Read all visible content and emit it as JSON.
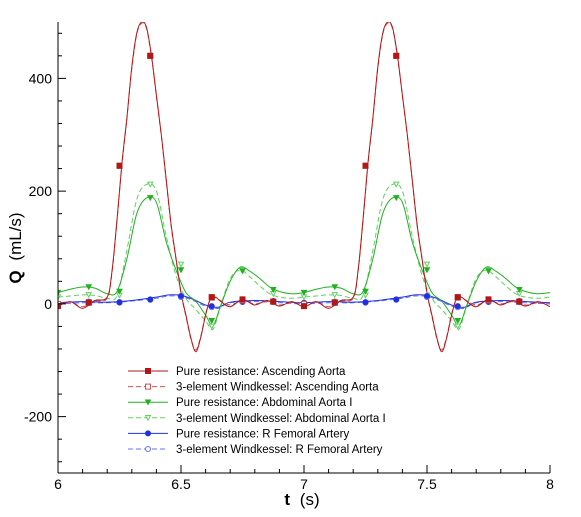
{
  "chart_data": {
    "type": "line",
    "xlabel": {
      "main": "t",
      "unit": "(s)"
    },
    "ylabel": {
      "main": "Q",
      "unit": "(mL/s)"
    },
    "xlim": [
      6,
      8
    ],
    "ylim": [
      -300,
      500
    ],
    "xticks": [
      6,
      6.5,
      7,
      7.5,
      8
    ],
    "xtick_labels": [
      "6",
      "6.5",
      "7",
      "7.5",
      "8"
    ],
    "yticks": [
      -200,
      0,
      200,
      400
    ],
    "ytick_labels": [
      "-200",
      "0",
      "200",
      "400"
    ],
    "legend_position": "bottom-center",
    "series": [
      {
        "name": "Pure resistance: Ascending Aorta",
        "color": "#b01818",
        "dash": "solid",
        "marker": "square",
        "marker_fill": "filled",
        "x": [
          6.0,
          6.05,
          6.1,
          6.15,
          6.2,
          6.22,
          6.24,
          6.26,
          6.28,
          6.3,
          6.32,
          6.34,
          6.36,
          6.38,
          6.4,
          6.42,
          6.44,
          6.46,
          6.48,
          6.5,
          6.52,
          6.54,
          6.56,
          6.58,
          6.6,
          6.62,
          6.64,
          6.66,
          6.7,
          6.75,
          6.8,
          6.85,
          6.9,
          6.95,
          7.0,
          7.05,
          7.1,
          7.15,
          7.2,
          7.22,
          7.24,
          7.26,
          7.28,
          7.3,
          7.32,
          7.34,
          7.36,
          7.38,
          7.4,
          7.42,
          7.44,
          7.46,
          7.48,
          7.5,
          7.52,
          7.54,
          7.56,
          7.58,
          7.6,
          7.62,
          7.64,
          7.66,
          7.7,
          7.75,
          7.8,
          7.85,
          7.9,
          7.95,
          8.0
        ],
        "y": [
          -4,
          4,
          -8,
          6,
          12,
          60,
          150,
          250,
          330,
          420,
          480,
          500,
          490,
          440,
          370,
          300,
          220,
          140,
          80,
          20,
          -20,
          -60,
          -85,
          -60,
          -20,
          10,
          12,
          5,
          -5,
          8,
          -2,
          6,
          -4,
          4,
          -5,
          4,
          -8,
          6,
          12,
          60,
          150,
          250,
          330,
          420,
          480,
          500,
          490,
          440,
          370,
          300,
          220,
          140,
          80,
          20,
          -20,
          -60,
          -85,
          -60,
          -20,
          10,
          12,
          5,
          -5,
          8,
          -2,
          6,
          -4,
          4,
          -5
        ],
        "marker_x": [
          6.0,
          6.125,
          6.25,
          6.375,
          6.625,
          6.75,
          6.875,
          7.0,
          7.125,
          7.25,
          7.375,
          7.625,
          7.75,
          7.875
        ],
        "marker_y": [
          -4,
          2,
          245,
          440,
          12,
          8,
          4,
          -4,
          2,
          245,
          440,
          12,
          8,
          4
        ]
      },
      {
        "name": "3-element Windkessel: Ascending Aorta",
        "color": "#d05050",
        "dash": "dashed",
        "marker": "square",
        "marker_fill": "open",
        "x": [
          6.0,
          6.05,
          6.1,
          6.15,
          6.2,
          6.22,
          6.24,
          6.26,
          6.28,
          6.3,
          6.32,
          6.34,
          6.36,
          6.38,
          6.4,
          6.42,
          6.44,
          6.46,
          6.48,
          6.5,
          6.52,
          6.54,
          6.56,
          6.58,
          6.6,
          6.62,
          6.64,
          6.66,
          6.7,
          6.75,
          6.8,
          6.85,
          6.9,
          6.95,
          7.0,
          7.05,
          7.1,
          7.15,
          7.2,
          7.22,
          7.24,
          7.26,
          7.28,
          7.3,
          7.32,
          7.34,
          7.36,
          7.38,
          7.4,
          7.42,
          7.44,
          7.46,
          7.48,
          7.5,
          7.52,
          7.54,
          7.56,
          7.58,
          7.6,
          7.62,
          7.64,
          7.66,
          7.7,
          7.75,
          7.8,
          7.85,
          7.9,
          7.95,
          8.0
        ],
        "y": [
          0,
          3,
          -5,
          5,
          10,
          58,
          148,
          248,
          328,
          418,
          478,
          498,
          488,
          438,
          368,
          298,
          218,
          138,
          78,
          18,
          -22,
          -62,
          -82,
          -58,
          -18,
          8,
          11,
          6,
          -2,
          6,
          0,
          4,
          -2,
          2,
          0,
          3,
          -5,
          5,
          10,
          58,
          148,
          248,
          328,
          418,
          478,
          498,
          488,
          438,
          368,
          298,
          218,
          138,
          78,
          18,
          -22,
          -62,
          -82,
          -58,
          -18,
          8,
          11,
          6,
          -2,
          6,
          0,
          4,
          -2,
          2,
          0
        ],
        "marker_x": [
          6.0,
          6.125,
          6.25,
          6.375,
          6.625,
          6.75,
          6.875,
          7.0,
          7.125,
          7.25,
          7.375,
          7.625,
          7.75,
          7.875
        ],
        "marker_y": [
          0,
          3,
          245,
          440,
          11,
          6,
          4,
          0,
          3,
          245,
          440,
          11,
          6,
          4
        ]
      },
      {
        "name": "Pure resistance: Abdominal Aorta I",
        "color": "#22b022",
        "dash": "solid",
        "marker": "triangle-down",
        "marker_fill": "filled",
        "x": [
          6.0,
          6.05,
          6.1,
          6.15,
          6.2,
          6.24,
          6.28,
          6.32,
          6.36,
          6.4,
          6.44,
          6.48,
          6.52,
          6.56,
          6.6,
          6.63,
          6.66,
          6.7,
          6.74,
          6.78,
          6.82,
          6.86,
          6.9,
          6.95,
          7.0,
          7.05,
          7.1,
          7.15,
          7.2,
          7.24,
          7.28,
          7.32,
          7.36,
          7.4,
          7.44,
          7.48,
          7.52,
          7.56,
          7.6,
          7.63,
          7.66,
          7.7,
          7.74,
          7.78,
          7.82,
          7.86,
          7.9,
          7.95,
          8.0
        ],
        "y": [
          20,
          26,
          30,
          28,
          18,
          22,
          80,
          160,
          188,
          180,
          110,
          60,
          20,
          5,
          -20,
          -38,
          -5,
          40,
          65,
          58,
          45,
          30,
          22,
          18,
          20,
          26,
          30,
          28,
          18,
          22,
          80,
          160,
          188,
          180,
          110,
          60,
          20,
          5,
          -20,
          -38,
          -5,
          40,
          65,
          58,
          45,
          30,
          22,
          18,
          20
        ],
        "marker_x": [
          6.0,
          6.125,
          6.25,
          6.375,
          6.5,
          6.625,
          6.75,
          6.875,
          7.0,
          7.125,
          7.25,
          7.375,
          7.5,
          7.625,
          7.75,
          7.875
        ],
        "marker_y": [
          20,
          30,
          22,
          188,
          60,
          -30,
          58,
          25,
          20,
          30,
          22,
          188,
          60,
          -30,
          58,
          25
        ]
      },
      {
        "name": "3-element Windkessel: Abdominal Aorta I",
        "color": "#60d060",
        "dash": "dashed",
        "marker": "triangle-down",
        "marker_fill": "open",
        "x": [
          6.0,
          6.05,
          6.1,
          6.15,
          6.2,
          6.24,
          6.28,
          6.32,
          6.36,
          6.4,
          6.44,
          6.48,
          6.52,
          6.56,
          6.6,
          6.63,
          6.66,
          6.7,
          6.74,
          6.78,
          6.82,
          6.86,
          6.9,
          6.95,
          7.0,
          7.05,
          7.1,
          7.15,
          7.2,
          7.24,
          7.28,
          7.32,
          7.36,
          7.4,
          7.44,
          7.48,
          7.52,
          7.56,
          7.6,
          7.63,
          7.66,
          7.7,
          7.74,
          7.78,
          7.82,
          7.86,
          7.9,
          7.95,
          8.0
        ],
        "y": [
          12,
          14,
          16,
          15,
          10,
          15,
          95,
          185,
          212,
          200,
          120,
          50,
          10,
          -10,
          -30,
          -45,
          -5,
          45,
          60,
          48,
          32,
          18,
          12,
          10,
          12,
          14,
          16,
          15,
          10,
          15,
          95,
          185,
          212,
          200,
          120,
          50,
          10,
          -10,
          -30,
          -45,
          -5,
          45,
          60,
          48,
          32,
          18,
          12,
          10,
          12
        ],
        "marker_x": [
          6.0,
          6.125,
          6.25,
          6.375,
          6.5,
          6.625,
          6.75,
          6.875,
          7.0,
          7.125,
          7.25,
          7.375,
          7.5,
          7.625,
          7.75,
          7.875
        ],
        "marker_y": [
          12,
          16,
          15,
          212,
          70,
          -40,
          60,
          18,
          12,
          16,
          15,
          212,
          70,
          -40,
          60,
          18
        ]
      },
      {
        "name": "Pure resistance: R Femoral Artery",
        "color": "#2030e0",
        "dash": "solid",
        "marker": "circle",
        "marker_fill": "filled",
        "x": [
          6.0,
          6.1,
          6.2,
          6.3,
          6.4,
          6.45,
          6.5,
          6.55,
          6.6,
          6.65,
          6.7,
          6.8,
          6.9,
          7.0,
          7.1,
          7.2,
          7.3,
          7.4,
          7.45,
          7.5,
          7.55,
          7.6,
          7.65,
          7.7,
          7.8,
          7.9,
          8.0
        ],
        "y": [
          2,
          4,
          3,
          6,
          12,
          16,
          15,
          8,
          -2,
          -6,
          3,
          6,
          4,
          2,
          4,
          3,
          6,
          12,
          16,
          15,
          8,
          -2,
          -6,
          3,
          6,
          4,
          2
        ],
        "marker_x": [
          6.125,
          6.25,
          6.375,
          6.5,
          6.625,
          6.75,
          6.875,
          7.0,
          7.125,
          7.25,
          7.375,
          7.5,
          7.625,
          7.75,
          7.875
        ],
        "marker_y": [
          4,
          3,
          8,
          14,
          -4,
          4,
          5,
          2,
          4,
          3,
          8,
          14,
          -4,
          4,
          5
        ]
      },
      {
        "name": "3-element Windkessel: R Femoral Artery",
        "color": "#6070ff",
        "dash": "dashed",
        "marker": "circle",
        "marker_fill": "open",
        "x": [
          6.0,
          6.1,
          6.2,
          6.3,
          6.4,
          6.45,
          6.5,
          6.55,
          6.6,
          6.65,
          6.7,
          6.8,
          6.9,
          7.0,
          7.1,
          7.2,
          7.3,
          7.4,
          7.45,
          7.5,
          7.55,
          7.6,
          7.65,
          7.7,
          7.8,
          7.9,
          8.0
        ],
        "y": [
          0,
          2,
          2,
          5,
          10,
          14,
          13,
          6,
          -4,
          -8,
          2,
          4,
          2,
          0,
          2,
          2,
          5,
          10,
          14,
          13,
          6,
          -4,
          -8,
          2,
          4,
          2,
          0
        ],
        "marker_x": [
          6.125,
          6.25,
          6.375,
          6.5,
          6.625,
          6.75,
          6.875,
          7.0,
          7.125,
          7.25,
          7.375,
          7.5,
          7.625,
          7.75,
          7.875
        ],
        "marker_y": [
          2,
          2,
          7,
          12,
          -6,
          3,
          3,
          0,
          2,
          2,
          7,
          12,
          -6,
          3,
          3
        ]
      }
    ]
  }
}
